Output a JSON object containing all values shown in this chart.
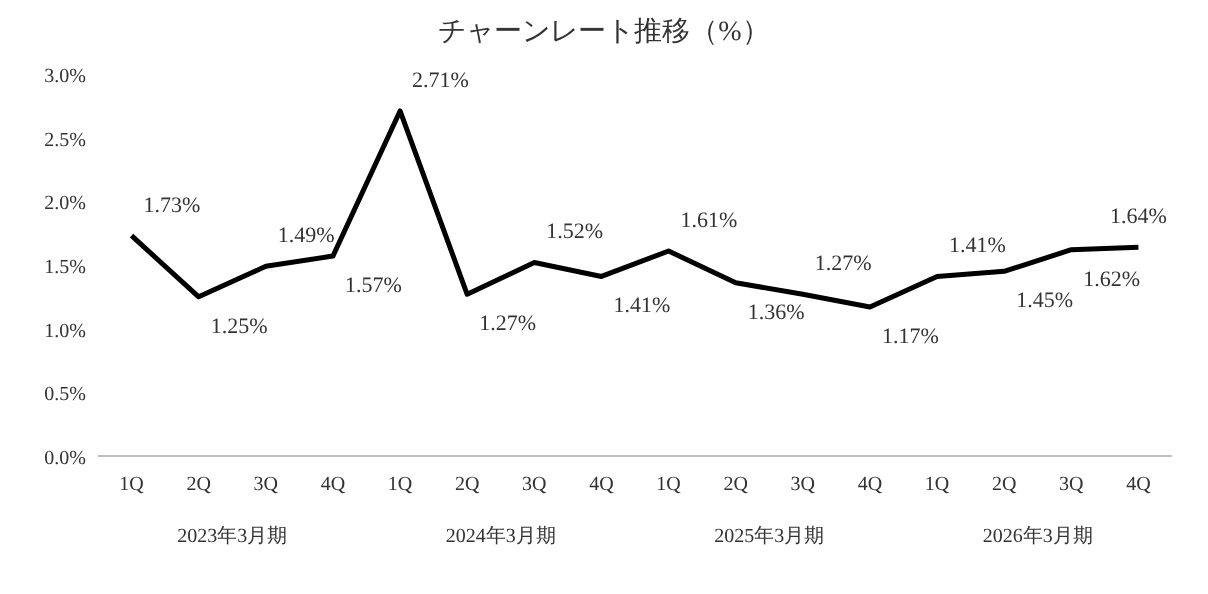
{
  "chart_data": {
    "type": "line",
    "title": "チャーンレート推移（%）",
    "categories": [
      "1Q",
      "2Q",
      "3Q",
      "4Q",
      "1Q",
      "2Q",
      "3Q",
      "4Q",
      "1Q",
      "2Q",
      "3Q",
      "4Q",
      "1Q",
      "2Q",
      "3Q",
      "4Q"
    ],
    "series": [
      {
        "color": "#000000",
        "values": [
          1.73,
          1.25,
          1.49,
          1.57,
          2.71,
          1.27,
          1.52,
          1.41,
          1.61,
          1.36,
          1.27,
          1.17,
          1.41,
          1.45,
          1.62,
          1.64
        ],
        "value_labels": [
          "1.73%",
          "1.25%",
          "1.49%",
          "1.57%",
          "2.71%",
          "1.27%",
          "1.52%",
          "1.41%",
          "1.61%",
          "1.36%",
          "1.27%",
          "1.17%",
          "1.41%",
          "1.45%",
          "1.62%",
          "1.64%"
        ]
      }
    ],
    "ylim": [
      0,
      3
    ],
    "yticks": [
      {
        "value": 0,
        "label": "0.0%"
      },
      {
        "value": 0.5,
        "label": "0.5%"
      },
      {
        "value": 1,
        "label": "1.0%"
      },
      {
        "value": 1.5,
        "label": "1.5%"
      },
      {
        "value": 2,
        "label": "2.0%"
      },
      {
        "value": 2.5,
        "label": "2.5%"
      },
      {
        "value": 3,
        "label": "3.0%"
      }
    ],
    "annotations": [
      "2023年3月期",
      "2024年3月期",
      "2025年3月期",
      "2026年3月期"
    ],
    "grid": false,
    "marker": "none",
    "line_style": "solid"
  }
}
